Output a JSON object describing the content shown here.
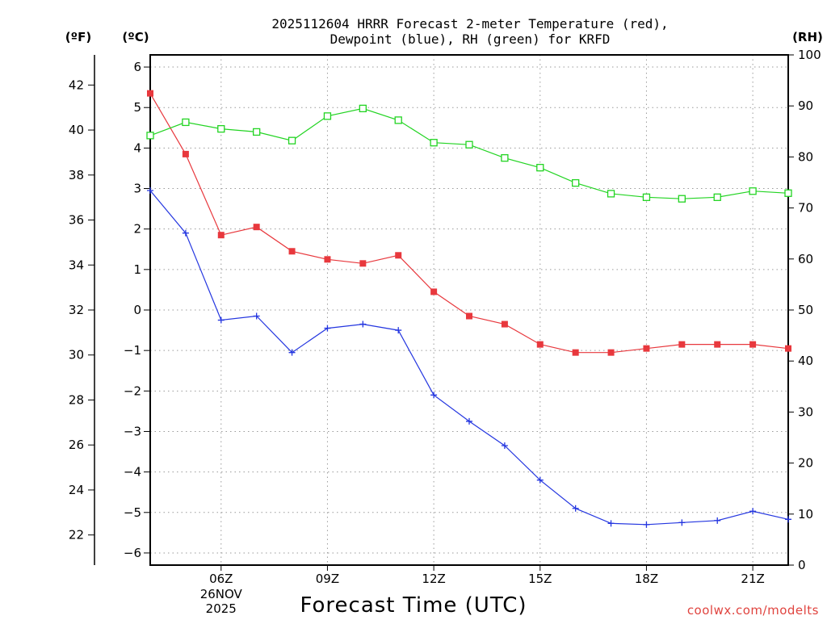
{
  "chart_data": {
    "type": "line",
    "title_line1": "2025112604 HRRR Forecast 2-meter Temperature (red),",
    "title_line2": "Dewpoint (blue), RH (green) for KRFD",
    "xlabel": "Forecast Time (UTC)",
    "credit": "coolwx.com/modelts",
    "unit_f": "(ºF)",
    "unit_c": "(ºC)",
    "unit_rh": "(RH)",
    "x_hours": [
      4,
      5,
      6,
      7,
      8,
      9,
      10,
      11,
      12,
      13,
      14,
      15,
      16,
      17,
      18,
      19,
      20,
      21,
      22
    ],
    "x_range": [
      4,
      22
    ],
    "x_ticks": [
      {
        "hour": 6,
        "label": "06Z",
        "date1": "26NOV",
        "date2": "2025"
      },
      {
        "hour": 9,
        "label": "09Z"
      },
      {
        "hour": 12,
        "label": "12Z"
      },
      {
        "hour": 15,
        "label": "15Z"
      },
      {
        "hour": 18,
        "label": "18Z"
      },
      {
        "hour": 21,
        "label": "21Z"
      }
    ],
    "c_range": [
      -6.3,
      6.3
    ],
    "c_ticks": [
      "-6",
      "-5",
      "-4",
      "-3",
      "-2",
      "-1",
      "0",
      "1",
      "2",
      "3",
      "4",
      "5",
      "6"
    ],
    "f_ticks": [
      "22",
      "24",
      "26",
      "28",
      "30",
      "32",
      "34",
      "36",
      "38",
      "40",
      "42"
    ],
    "rh_range": [
      0,
      100
    ],
    "rh_ticks": [
      "0",
      "10",
      "20",
      "30",
      "40",
      "50",
      "60",
      "70",
      "80",
      "90",
      "100"
    ],
    "series": [
      {
        "name": "Temperature",
        "color": "#e8383d",
        "marker": "filled-square",
        "values": [
          5.35,
          3.85,
          1.85,
          2.05,
          1.45,
          1.25,
          1.15,
          1.35,
          0.45,
          -0.15,
          -0.35,
          -0.85,
          -1.05,
          -1.05,
          -0.95,
          -0.85,
          -0.85,
          -0.85,
          -0.95
        ]
      },
      {
        "name": "Dewpoint",
        "color": "#2436e0",
        "marker": "plus",
        "values": [
          2.95,
          1.9,
          -0.25,
          -0.15,
          -1.05,
          -0.45,
          -0.35,
          -0.5,
          -2.1,
          -2.75,
          -3.35,
          -4.2,
          -4.9,
          -5.27,
          -5.3,
          -5.25,
          -5.2,
          -4.97,
          -5.17
        ]
      },
      {
        "name": "RH",
        "color": "#22d422",
        "marker": "open-square",
        "axis": "rh",
        "values": [
          84.2,
          86.8,
          85.5,
          84.9,
          83.2,
          88.0,
          89.5,
          87.2,
          82.8,
          82.4,
          79.8,
          77.9,
          74.9,
          72.8,
          72.1,
          71.8,
          72.1,
          73.3,
          72.9
        ]
      }
    ]
  }
}
